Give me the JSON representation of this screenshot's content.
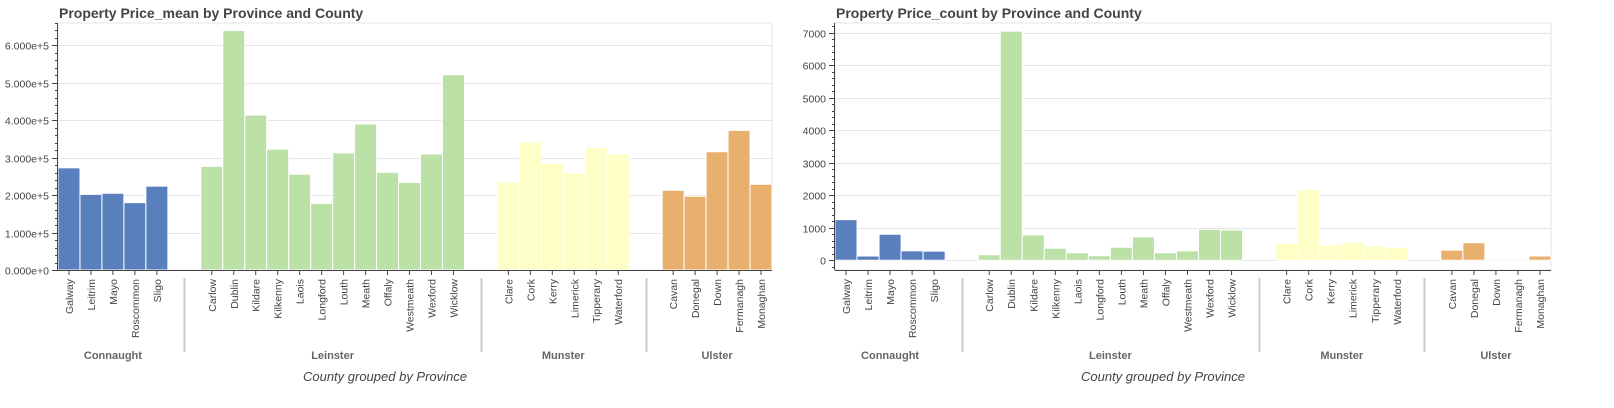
{
  "chart_data": [
    {
      "type": "bar",
      "title": "Property Price_mean by Province and County",
      "xlabel": "County grouped by Province",
      "ylabel": "",
      "ylim": [
        0,
        660000
      ],
      "yticks": [
        0,
        100000,
        200000,
        300000,
        400000,
        500000,
        600000
      ],
      "ytick_labels": [
        "0.000e+0",
        "1.000e+5",
        "2.000e+5",
        "3.000e+5",
        "4.000e+5",
        "5.000e+5",
        "6.000e+5"
      ],
      "grid": true,
      "groups": [
        {
          "name": "Connaught",
          "color": "#5a7fbd",
          "categories": [
            "Galway",
            "Leitrim",
            "Mayo",
            "Roscommon",
            "Sligo"
          ],
          "values": [
            273000,
            202000,
            205000,
            180000,
            224000
          ]
        },
        {
          "name": "Leinster",
          "color": "#bce1a6",
          "categories": [
            "Carlow",
            "Dublin",
            "Kildare",
            "Kilkenny",
            "Laois",
            "Longford",
            "Louth",
            "Meath",
            "Offaly",
            "Westmeath",
            "Wexford",
            "Wicklow"
          ],
          "values": [
            277000,
            640000,
            414000,
            323000,
            256000,
            178000,
            313000,
            390000,
            261000,
            234000,
            310000,
            522000
          ]
        },
        {
          "name": "Munster",
          "color": "#fefec7",
          "categories": [
            "Clare",
            "Cork",
            "Kerry",
            "Limerick",
            "Tipperary",
            "Waterford"
          ],
          "values": [
            235000,
            342000,
            285000,
            260000,
            328000,
            310000
          ]
        },
        {
          "name": "Ulster",
          "color": "#e8b06c",
          "categories": [
            "Cavan",
            "Donegal",
            "Down",
            "Fermanagh",
            "Monaghan"
          ],
          "values": [
            213000,
            197000,
            316000,
            373000,
            229000
          ]
        }
      ]
    },
    {
      "type": "bar",
      "title": "Property Price_count by Province and County",
      "xlabel": "County grouped by Province",
      "ylabel": "",
      "ylim": [
        -300,
        7300
      ],
      "yticks": [
        0,
        1000,
        2000,
        3000,
        4000,
        5000,
        6000,
        7000
      ],
      "ytick_labels": [
        "0",
        "1000",
        "2000",
        "3000",
        "4000",
        "5000",
        "6000",
        "7000"
      ],
      "grid": true,
      "groups": [
        {
          "name": "Connaught",
          "color": "#5a7fbd",
          "categories": [
            "Galway",
            "Leitrim",
            "Mayo",
            "Roscommon",
            "Sligo"
          ],
          "values": [
            1250,
            130,
            800,
            290,
            280
          ]
        },
        {
          "name": "Leinster",
          "color": "#bce1a6",
          "categories": [
            "Carlow",
            "Dublin",
            "Kildare",
            "Kilkenny",
            "Laois",
            "Longford",
            "Louth",
            "Meath",
            "Offaly",
            "Westmeath",
            "Wexford",
            "Wicklow"
          ],
          "values": [
            170,
            7050,
            780,
            370,
            230,
            140,
            400,
            720,
            230,
            290,
            950,
            930
          ]
        },
        {
          "name": "Munster",
          "color": "#fefec7",
          "categories": [
            "Clare",
            "Cork",
            "Kerry",
            "Limerick",
            "Tipperary",
            "Waterford"
          ],
          "values": [
            520,
            2180,
            470,
            560,
            440,
            400
          ]
        },
        {
          "name": "Ulster",
          "color": "#e8b06c",
          "categories": [
            "Cavan",
            "Donegal",
            "Down",
            "Fermanagh",
            "Monaghan"
          ],
          "values": [
            310,
            540,
            10,
            5,
            130
          ]
        }
      ]
    }
  ]
}
